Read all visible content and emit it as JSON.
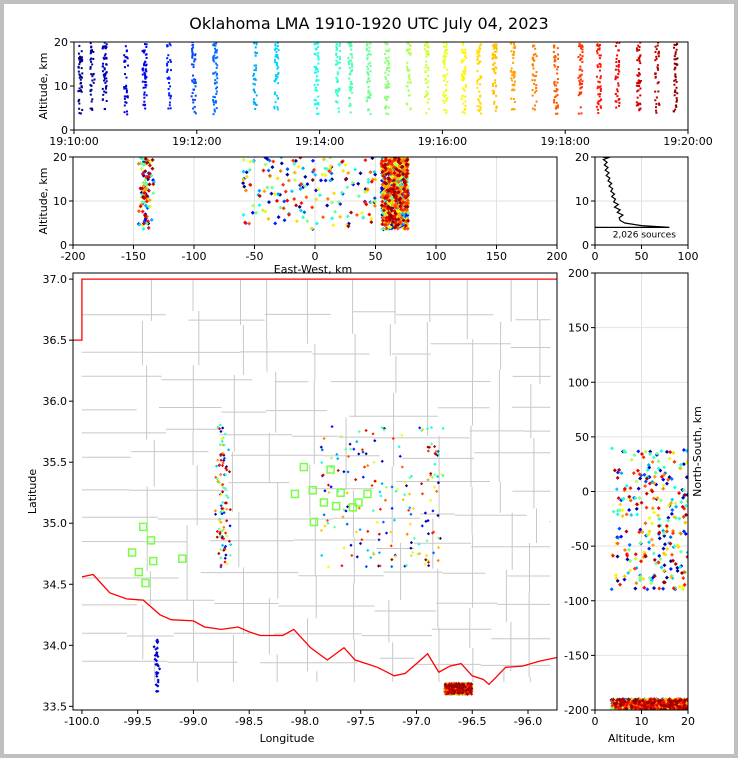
{
  "title": "Oklahoma LMA 1910-1920 UTC July 04, 2023",
  "chart_data": [
    {
      "id": "time-altitude",
      "type": "scatter",
      "ylabel": "Altitude, km",
      "xlim": [
        "19:10:00",
        "19:20:00"
      ],
      "ylim": [
        0,
        20
      ],
      "x_ticks": [
        "19:10:00",
        "19:12:00",
        "19:14:00",
        "19:16:00",
        "19:18:00",
        "19:20:00"
      ],
      "y_ticks": [
        "0",
        "10",
        "20"
      ],
      "color_scale": "time (blue to red)",
      "source_bursts_minutes": [
        0.1,
        0.3,
        0.5,
        0.85,
        1.15,
        1.55,
        1.95,
        2.3,
        2.95,
        3.3,
        3.95,
        4.3,
        4.5,
        4.8,
        5.1,
        5.45,
        5.75,
        6.05,
        6.35,
        6.6,
        6.85,
        7.15,
        7.5,
        7.85,
        8.25,
        8.55,
        8.85,
        9.2,
        9.5,
        9.8
      ]
    },
    {
      "id": "eastwest-altitude",
      "type": "scatter",
      "xlabel": "East-West, km",
      "ylabel": "Altitude, km",
      "xlim": [
        -200,
        200
      ],
      "ylim": [
        0,
        20
      ],
      "x_ticks": [
        "-200",
        "-150",
        "-100",
        "-50",
        "0",
        "50",
        "100",
        "150",
        "200"
      ],
      "y_ticks": [
        "0",
        "10",
        "20"
      ]
    },
    {
      "id": "altitude-histogram",
      "type": "line",
      "xlim": [
        0,
        100
      ],
      "ylim": [
        0,
        20
      ],
      "x_ticks": [
        "0",
        "50",
        "100"
      ],
      "y_ticks": [
        "0",
        "10",
        "20"
      ],
      "annotation": "2,026 sources",
      "profile": [
        [
          0,
          4.0
        ],
        [
          80,
          4.0
        ],
        [
          50,
          4.4
        ],
        [
          32,
          5.0
        ],
        [
          27,
          5.6
        ],
        [
          26,
          6.2
        ],
        [
          30,
          6.8
        ],
        [
          24,
          7.4
        ],
        [
          27,
          8.0
        ],
        [
          21,
          8.6
        ],
        [
          25,
          9.2
        ],
        [
          20,
          9.8
        ],
        [
          22,
          10.4
        ],
        [
          18,
          11.0
        ],
        [
          21,
          11.6
        ],
        [
          17,
          12.2
        ],
        [
          19,
          12.8
        ],
        [
          15,
          13.4
        ],
        [
          18,
          14.0
        ],
        [
          14,
          14.6
        ],
        [
          16,
          15.2
        ],
        [
          12,
          15.8
        ],
        [
          15,
          16.4
        ],
        [
          11,
          17.0
        ],
        [
          14,
          17.6
        ],
        [
          10,
          18.2
        ],
        [
          13,
          18.8
        ],
        [
          9,
          19.4
        ],
        [
          14,
          19.8
        ],
        [
          8,
          20.0
        ]
      ]
    },
    {
      "id": "plan-view-map",
      "type": "scatter",
      "xlabel": "Longitude",
      "ylabel": "Latitude",
      "xlim": [
        -100.08,
        -95.74
      ],
      "ylim": [
        33.47,
        37.05
      ],
      "x_ticks": [
        "-100.0",
        "-99.5",
        "-99.0",
        "-98.5",
        "-98.0",
        "-97.5",
        "-97.0",
        "-96.5",
        "-96.0"
      ],
      "y_ticks": [
        "33.5",
        "34.0",
        "34.5",
        "35.0",
        "35.5",
        "36.0",
        "36.5",
        "37.0"
      ],
      "stations": [
        [
          -99.45,
          34.97
        ],
        [
          -99.38,
          34.86
        ],
        [
          -99.55,
          34.76
        ],
        [
          -99.36,
          34.69
        ],
        [
          -99.49,
          34.6
        ],
        [
          -99.43,
          34.51
        ],
        [
          -99.1,
          34.71
        ],
        [
          -98.09,
          35.24
        ],
        [
          -98.01,
          35.46
        ],
        [
          -97.93,
          35.27
        ],
        [
          -97.92,
          35.01
        ],
        [
          -97.83,
          35.17
        ],
        [
          -97.77,
          35.44
        ],
        [
          -97.72,
          35.14
        ],
        [
          -97.68,
          35.25
        ],
        [
          -97.57,
          35.13
        ],
        [
          -97.52,
          35.17
        ],
        [
          -97.44,
          35.24
        ]
      ],
      "station_color": "#77ff44",
      "boundary_color": "#ff0000"
    },
    {
      "id": "altitude-northsouth",
      "type": "scatter",
      "xlabel": "Altitude, km",
      "ylabel": "North-South, km",
      "xlim": [
        0,
        20
      ],
      "ylim": [
        -200,
        200
      ],
      "x_ticks": [
        "0",
        "10",
        "20"
      ],
      "y_ticks": [
        "-200",
        "-150",
        "-100",
        "-50",
        "0",
        "50",
        "100",
        "150",
        "200"
      ]
    }
  ]
}
